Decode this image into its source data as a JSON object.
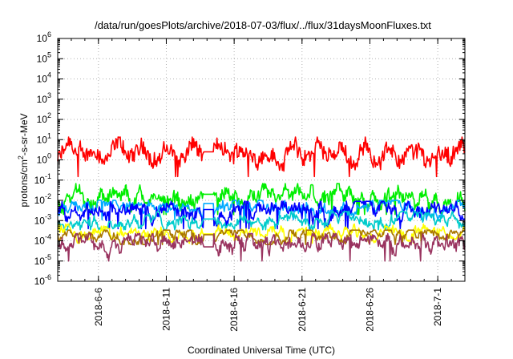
{
  "chart_data": {
    "type": "line",
    "title": "/data/run/goesPlots/archive/2018-07-03/flux/../flux/31daysMoonFluxes.txt",
    "xlabel": "Coordinated Universal Time (UTC)",
    "ylabel": "protons/cm²-s-sr-MeV",
    "ylabel_parts": {
      "pre": "protons/cm",
      "sup": "2",
      "post": "-s-sr-MeV"
    },
    "y_scale": "log",
    "ylim": [
      1e-06,
      1000000.0
    ],
    "y_ticks": [
      {
        "base": "10",
        "exp": "-6"
      },
      {
        "base": "10",
        "exp": "-5"
      },
      {
        "base": "10",
        "exp": "-4"
      },
      {
        "base": "10",
        "exp": "-3"
      },
      {
        "base": "10",
        "exp": "-2"
      },
      {
        "base": "10",
        "exp": "-1"
      },
      {
        "base": "10",
        "exp": "0"
      },
      {
        "base": "10",
        "exp": "1"
      },
      {
        "base": "10",
        "exp": "2"
      },
      {
        "base": "10",
        "exp": "3"
      },
      {
        "base": "10",
        "exp": "4"
      },
      {
        "base": "10",
        "exp": "5"
      },
      {
        "base": "10",
        "exp": "6"
      }
    ],
    "x_range": [
      "2018-06-03",
      "2018-07-03"
    ],
    "x_ticks": [
      "2018-6-6",
      "2018-6-11",
      "2018-6-16",
      "2018-6-21",
      "2018-6-26",
      "2018-7-1"
    ],
    "grid": true,
    "data_gap": {
      "start": "2018-06-13T18:00",
      "end": "2018-06-14T12:00"
    },
    "series": [
      {
        "color": "#ff0000",
        "level": 2.0,
        "lo": 0.3,
        "hi": 12,
        "gap_value": 2.5
      },
      {
        "color": "#00ee00",
        "level": 0.012,
        "lo": 0.004,
        "hi": 0.06,
        "gap_value": 0.02
      },
      {
        "color": "#00aaff",
        "level": 0.0045,
        "lo": 0.0022,
        "hi": 0.009,
        "gap_value": 0.007
      },
      {
        "color": "#0000ff",
        "level": 0.0035,
        "lo": 0.0008,
        "hi": 0.008,
        "gap_value": 0.0035
      },
      {
        "color": "#00cccc",
        "level": 0.0011,
        "lo": 0.0007,
        "hi": 0.0025,
        "gap_value": 0.0012
      },
      {
        "color": "#ffff00",
        "level": 0.00028,
        "lo": 0.00015,
        "hi": 0.0006,
        "gap_value": 0.00022
      },
      {
        "color": "#aa7700",
        "level": 0.00022,
        "lo": 0.00013,
        "hi": 0.0003,
        "gap_value": 0.0002
      },
      {
        "color": "#99335f",
        "level": 8e-05,
        "lo": 2e-05,
        "hi": 0.0002,
        "gap_value": 5e-05
      }
    ]
  }
}
